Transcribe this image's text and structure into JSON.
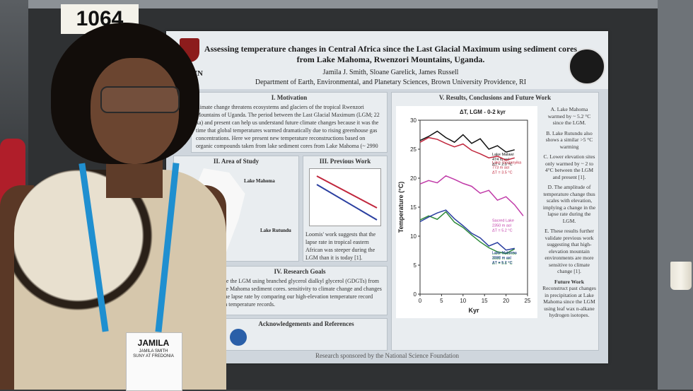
{
  "booth_number": "1064",
  "poster": {
    "title": "Assessing temperature changes in Central Africa since the Last Glacial Maximum using sediment cores from Lake Mahoma, Rwenzori Mountains, Uganda.",
    "logo_left_text": "WN",
    "authors": "Jamila J. Smith, Sloane Garelick, James Russell",
    "department": "Department of Earth, Environmental, and Planetary Sciences, Brown University Providence, RI",
    "motivation_heading": "I. Motivation",
    "motivation_text": "climate change threatens ecosystems and glaciers of the tropical Rwenzori Mountains of Uganda. The period between the Last Glacial Maximum (LGM; 22 ka) and present can help us understand future climate changes because it was the time that global temperatures warmed dramatically due to rising greenhouse gas concentrations. Here we present new temperature reconstructions based on organic compounds taken from lake sediment cores from Lake Mahoma (~ 2990 m) in the Rwenzori Mountains, to infer past climate patterns of this region.",
    "study_heading": "II. Area of Study",
    "study_lake1": "Lake Mahoma",
    "study_lake2": "Lake Rutundu",
    "previous_heading": "III. Previous Work",
    "previous_text": "Loomis' work suggests that the lapse rate in tropical eastern African was steeper during the LGM than it is today [1].",
    "goals_heading": "IV. Research Goals",
    "goals_text": "since the LGM using branched glycerol dialkyl glycerol (GDGTs) from Lake Mahoma sediment cores. sensitivity to climate change and changes in the lapse rate by comparing our high-elevation temperature record with temperature records.",
    "ack_heading": "Acknowledgements and References",
    "results_heading": "V. Results, Conclusions and Future Work",
    "chart_title": "ΔT, LGM - 0-2 kyr",
    "results_points": [
      "A. Lake Mahoma warmed by ~ 5.2 °C since the LGM.",
      "B. Lake Rutundu also shows a similar >5 °C warming",
      "C. Lower elevation sites only warmed by ~ 2 to 4°C between the LGM and present [1].",
      "D. The amplitude of temperature change thus scales with elevation, implying a change in the lapse rate during the LGM.",
      "E. These results further validate previous work suggesting that high-elevation mountain environments are more sensitive to climate change [1]."
    ],
    "future_heading": "Future Work",
    "future_text": "Reconstruct past changes in precipitation at Lake Mahoma since the LGM using leaf wax n-alkane hydrogen isotopes.",
    "footer": "Research sponsored by the National Science Foundation"
  },
  "chart_data": {
    "type": "line",
    "title": "ΔT, LGM - 0-2 kyr",
    "xlabel": "Kyr",
    "ylabel": "Temperature (°C)",
    "xlim": [
      0,
      25
    ],
    "ylim": [
      0,
      30
    ],
    "x_ticks": [
      0,
      5,
      10,
      15,
      20,
      25
    ],
    "y_ticks": [
      0,
      5,
      10,
      15,
      20,
      25,
      30
    ],
    "series": [
      {
        "name": "Lake Malawi 474 m asl ΔT = 2.0 °C",
        "color": "#111111",
        "x": [
          0,
          2,
          4,
          6,
          8,
          10,
          12,
          14,
          16,
          18,
          20,
          22
        ],
        "y": [
          26.5,
          27.2,
          28.1,
          27.0,
          26.2,
          27.5,
          26.0,
          26.8,
          25.0,
          25.6,
          24.5,
          24.9
        ]
      },
      {
        "name": "Lake Tanganyika 773 m asl ΔT = 3.5 °C",
        "color": "#c0263c",
        "x": [
          0,
          2,
          4,
          6,
          8,
          10,
          12,
          14,
          16,
          18,
          20,
          22
        ],
        "y": [
          26.2,
          27.0,
          26.7,
          26.0,
          25.4,
          25.9,
          24.8,
          24.2,
          23.5,
          23.8,
          23.1,
          23.5
        ]
      },
      {
        "name": "Sacred Lake 2350 m asl ΔT = 5.2 °C",
        "color": "#c03aa8",
        "x": [
          0,
          2,
          4,
          6,
          8,
          10,
          12,
          14,
          16,
          18,
          20,
          22,
          24
        ],
        "y": [
          19.0,
          19.6,
          19.2,
          20.4,
          19.8,
          19.1,
          18.6,
          17.4,
          17.9,
          16.2,
          16.8,
          15.4,
          13.5
        ]
      },
      {
        "name": "Lake Rutundu 3081 m asl ΔT = 5.5 °C",
        "color": "#2e8a3a",
        "x": [
          0,
          2,
          4,
          6,
          8,
          10,
          12,
          14,
          16,
          18,
          20,
          22
        ],
        "y": [
          12.8,
          13.5,
          12.9,
          14.2,
          12.4,
          11.5,
          10.2,
          9.0,
          8.0,
          7.3,
          7.0,
          7.8
        ]
      },
      {
        "name": "Lake Mahoma 2990 m asl ΔT = 5.2 °C",
        "color": "#2a3fa0",
        "x": [
          0,
          2,
          4,
          6,
          8,
          10,
          12,
          14,
          16,
          18,
          20,
          22
        ],
        "y": [
          12.5,
          13.3,
          14.0,
          14.5,
          13.0,
          11.8,
          10.5,
          9.7,
          8.3,
          8.9,
          7.6,
          7.9
        ]
      }
    ]
  },
  "badge": {
    "first_name": "JAMILA",
    "full_name": "JAMILA SMITH",
    "school": "SUNY AT FREDONIA"
  }
}
